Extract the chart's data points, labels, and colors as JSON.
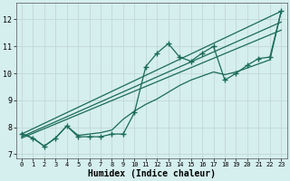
{
  "xlabel": "Humidex (Indice chaleur)",
  "bg_color": "#d5eeee",
  "grid_color": "#c2d8d8",
  "line_color": "#1a6b5a",
  "xlim": [
    -0.5,
    23.5
  ],
  "ylim": [
    6.85,
    12.6
  ],
  "yticks": [
    7,
    8,
    9,
    10,
    11,
    12
  ],
  "xticks": [
    0,
    1,
    2,
    3,
    4,
    5,
    6,
    7,
    8,
    9,
    10,
    11,
    12,
    13,
    14,
    15,
    16,
    17,
    18,
    19,
    20,
    21,
    22,
    23
  ],
  "wiggly_x": [
    0,
    1,
    2,
    3,
    4,
    5,
    6,
    7,
    8,
    9,
    10,
    11,
    12,
    13,
    14,
    15,
    16,
    17,
    18,
    19,
    20,
    21,
    22,
    23
  ],
  "wiggly_y": [
    7.75,
    7.6,
    7.3,
    7.6,
    8.05,
    7.65,
    7.65,
    7.65,
    7.75,
    7.75,
    8.55,
    10.25,
    10.75,
    11.1,
    10.6,
    10.45,
    10.75,
    11.0,
    9.75,
    10.0,
    10.3,
    10.55,
    10.6,
    12.3
  ],
  "smooth_x": [
    0,
    1,
    2,
    3,
    4,
    5,
    6,
    7,
    8,
    9,
    10,
    11,
    12,
    13,
    14,
    15,
    16,
    17,
    18,
    19,
    20,
    21,
    22,
    23
  ],
  "smooth_y": [
    7.75,
    7.6,
    7.3,
    7.6,
    8.05,
    7.7,
    7.75,
    7.8,
    7.9,
    8.3,
    8.6,
    8.85,
    9.05,
    9.3,
    9.55,
    9.75,
    9.9,
    10.05,
    9.95,
    10.05,
    10.2,
    10.35,
    10.5,
    12.3
  ],
  "line1_x": [
    0,
    23
  ],
  "line1_y": [
    7.75,
    12.3
  ],
  "line2_x": [
    0,
    23
  ],
  "line2_y": [
    7.65,
    11.9
  ],
  "line3_x": [
    0,
    23
  ],
  "line3_y": [
    7.6,
    11.6
  ]
}
